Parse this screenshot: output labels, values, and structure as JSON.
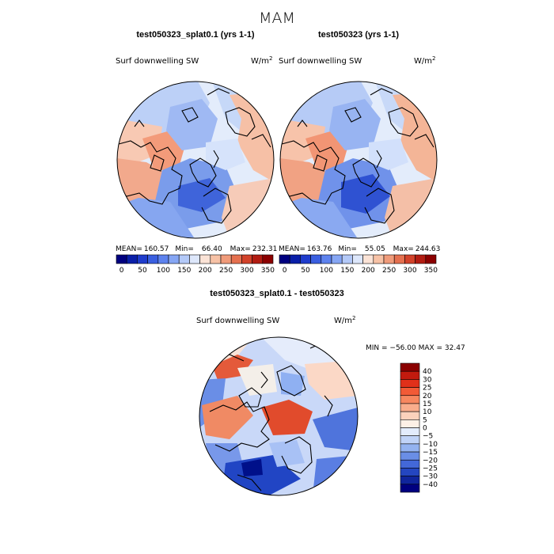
{
  "figure": {
    "season_title": "MAM"
  },
  "panels": [
    {
      "title": "test050323_splat0.1 (yrs 1-1)",
      "variable": "Surf downwelling SW",
      "units_base": "W/m",
      "units_exp": "2",
      "stats": {
        "mean_label": "MEAN=",
        "mean": "160.57",
        "min_label": "Min=",
        "min": "66.40",
        "max_label": "Max=",
        "max": "232.31"
      }
    },
    {
      "title": "test050323 (yrs 1-1)",
      "variable": "Surf downwelling SW",
      "units_base": "W/m",
      "units_exp": "2",
      "stats": {
        "mean_label": "MEAN=",
        "mean": "163.76",
        "min_label": "Min=",
        "min": "55.05",
        "max_label": "Max=",
        "max": "244.63"
      }
    },
    {
      "title": "test050323_splat0.1 - test050323",
      "variable": "Surf downwelling SW",
      "units_base": "W/m",
      "units_exp": "2",
      "stats_text": "MIN = −56.00 MAX =  32.47"
    }
  ],
  "chart_data": [
    {
      "type": "heatmap",
      "projection": "north polar stereographic",
      "title": "test050323_splat0.1 (yrs 1-1)",
      "variable": "Surf downwelling SW",
      "units": "W/m2",
      "mean": 160.57,
      "min": 66.4,
      "max": 232.31,
      "colorbar": {
        "orientation": "horizontal",
        "levels": [
          0,
          25,
          50,
          75,
          100,
          125,
          150,
          175,
          200,
          225,
          250,
          275,
          300,
          325,
          350
        ],
        "tick_labels": [
          "0",
          "50",
          "100",
          "150",
          "200",
          "250",
          "300",
          "350"
        ],
        "colors": [
          "#00007f",
          "#0a1fa8",
          "#1f3ccc",
          "#3a5fe0",
          "#5d82ee",
          "#86a6f4",
          "#b3c9f8",
          "#dde7fb",
          "#fbe3d6",
          "#f7c2a6",
          "#f09b7a",
          "#e5704f",
          "#d2422a",
          "#b21c12",
          "#8b0000"
        ]
      }
    },
    {
      "type": "heatmap",
      "projection": "north polar stereographic",
      "title": "test050323 (yrs 1-1)",
      "variable": "Surf downwelling SW",
      "units": "W/m2",
      "mean": 163.76,
      "min": 55.05,
      "max": 244.63,
      "colorbar": {
        "orientation": "horizontal",
        "levels": [
          0,
          25,
          50,
          75,
          100,
          125,
          150,
          175,
          200,
          225,
          250,
          275,
          300,
          325,
          350
        ],
        "tick_labels": [
          "0",
          "50",
          "100",
          "150",
          "200",
          "250",
          "300",
          "350"
        ],
        "colors": [
          "#00007f",
          "#0a1fa8",
          "#1f3ccc",
          "#3a5fe0",
          "#5d82ee",
          "#86a6f4",
          "#b3c9f8",
          "#dde7fb",
          "#fbe3d6",
          "#f7c2a6",
          "#f09b7a",
          "#e5704f",
          "#d2422a",
          "#b21c12",
          "#8b0000"
        ]
      }
    },
    {
      "type": "heatmap",
      "projection": "north polar stereographic",
      "title": "test050323_splat0.1 - test050323",
      "variable": "Surf downwelling SW",
      "units": "W/m2",
      "min": -56.0,
      "max": 32.47,
      "colorbar": {
        "orientation": "vertical",
        "tick_labels": [
          "40",
          "30",
          "25",
          "20",
          "15",
          "10",
          "5",
          "0",
          "−5",
          "−10",
          "−15",
          "−20",
          "−25",
          "−30",
          "−40"
        ],
        "colors": [
          "#8b0000",
          "#c21a0e",
          "#e0301a",
          "#f25a36",
          "#f7875f",
          "#f9ad8c",
          "#fbd2bc",
          "#fdf0e6",
          "#e3ecfc",
          "#c0d3f7",
          "#94b3f0",
          "#6a8ee6",
          "#4368d8",
          "#2446c0",
          "#10259c",
          "#00007f"
        ]
      }
    }
  ]
}
